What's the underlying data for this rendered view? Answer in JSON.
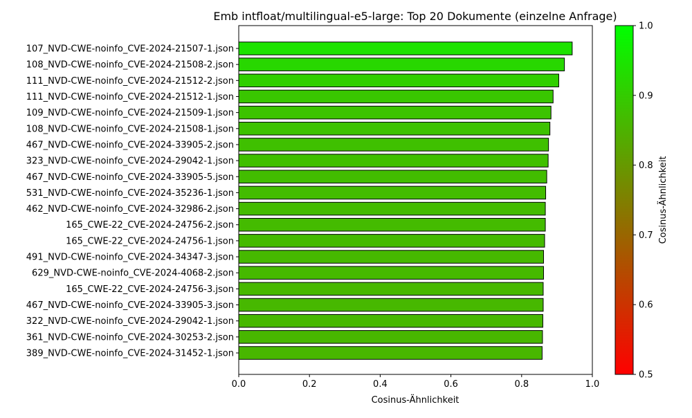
{
  "chart_data": {
    "type": "bar",
    "orientation": "horizontal",
    "title": "Emb intfloat/multilingual-e5-large: Top 20 Dokumente (einzelne Anfrage)",
    "xlabel": "Cosinus-Ähnlichkeit",
    "ylabel": "",
    "xlim": [
      0.0,
      1.0
    ],
    "xticks": [
      "0.0",
      "0.2",
      "0.4",
      "0.6",
      "0.8",
      "1.0"
    ],
    "grid": false,
    "colormap": {
      "low_color": "#ff0000",
      "high_color": "#00ff00",
      "range": [
        0.5,
        1.0
      ]
    },
    "colorbar": {
      "label": "Cosinus-Ähnlichkeit",
      "ticks": [
        "0.5",
        "0.6",
        "0.7",
        "0.8",
        "0.9",
        "1.0"
      ]
    },
    "categories": [
      "107_NVD-CWE-noinfo_CVE-2024-21507-1.json",
      "108_NVD-CWE-noinfo_CVE-2024-21508-2.json",
      "111_NVD-CWE-noinfo_CVE-2024-21512-2.json",
      "111_NVD-CWE-noinfo_CVE-2024-21512-1.json",
      "109_NVD-CWE-noinfo_CVE-2024-21509-1.json",
      "108_NVD-CWE-noinfo_CVE-2024-21508-1.json",
      "467_NVD-CWE-noinfo_CVE-2024-33905-2.json",
      "323_NVD-CWE-noinfo_CVE-2024-29042-1.json",
      "467_NVD-CWE-noinfo_CVE-2024-33905-5.json",
      "531_NVD-CWE-noinfo_CVE-2024-35236-1.json",
      "462_NVD-CWE-noinfo_CVE-2024-32986-2.json",
      "165_CWE-22_CVE-2024-24756-2.json",
      "165_CWE-22_CVE-2024-24756-1.json",
      "491_NVD-CWE-noinfo_CVE-2024-34347-3.json",
      "629_NVD-CWE-noinfo_CVE-2024-4068-2.json",
      "165_CWE-22_CVE-2024-24756-3.json",
      "467_NVD-CWE-noinfo_CVE-2024-33905-3.json",
      "322_NVD-CWE-noinfo_CVE-2024-29042-1.json",
      "361_NVD-CWE-noinfo_CVE-2024-30253-2.json",
      "389_NVD-CWE-noinfo_CVE-2024-31452-1.json"
    ],
    "values": [
      0.943,
      0.921,
      0.905,
      0.889,
      0.883,
      0.88,
      0.876,
      0.875,
      0.871,
      0.868,
      0.867,
      0.867,
      0.865,
      0.862,
      0.862,
      0.861,
      0.861,
      0.86,
      0.859,
      0.858
    ]
  }
}
